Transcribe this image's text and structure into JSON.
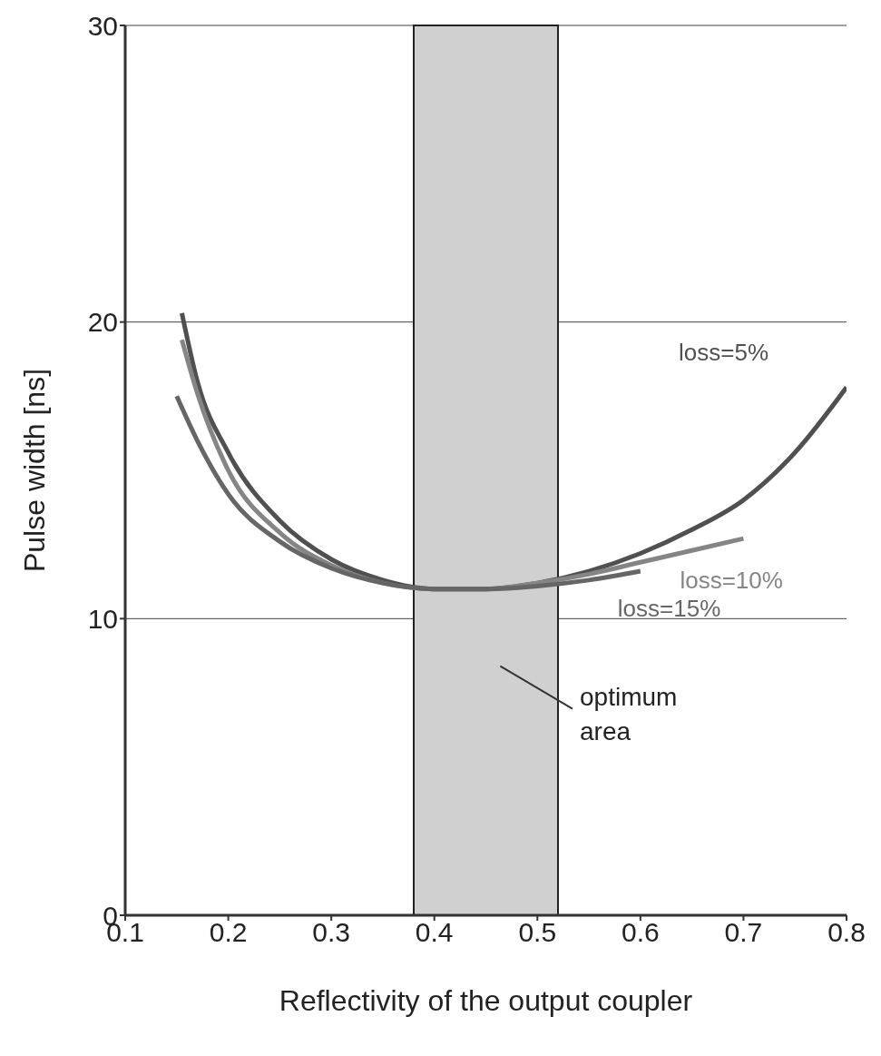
{
  "chart_data": {
    "type": "line",
    "xlabel": "Reflectivity of the output coupler",
    "ylabel": "Pulse width [ns]",
    "xlim": [
      0.1,
      0.8
    ],
    "xticks": [
      0.1,
      0.2,
      0.3,
      0.4,
      0.5,
      0.6,
      0.7,
      0.8
    ],
    "ylim": [
      0,
      30
    ],
    "yticks": [
      0,
      10,
      20,
      30
    ],
    "grid": "y",
    "legend": false,
    "marker": "none",
    "line_style": "solid",
    "series": [
      {
        "name": "loss=5%",
        "color": "#505050",
        "x": [
          0.155,
          0.17,
          0.2,
          0.25,
          0.3,
          0.35,
          0.4,
          0.45,
          0.5,
          0.55,
          0.6,
          0.65,
          0.7,
          0.75,
          0.8
        ],
        "values": [
          20.3,
          18.0,
          15.6,
          13.3,
          12.0,
          11.3,
          11.0,
          11.0,
          11.2,
          11.6,
          12.2,
          13.0,
          14.0,
          15.6,
          17.8
        ]
      },
      {
        "name": "loss=10%",
        "color": "#858585",
        "x": [
          0.155,
          0.17,
          0.2,
          0.25,
          0.3,
          0.35,
          0.4,
          0.45,
          0.5,
          0.55,
          0.6,
          0.65,
          0.7
        ],
        "values": [
          19.4,
          17.6,
          15.0,
          12.9,
          11.8,
          11.2,
          11.0,
          11.0,
          11.2,
          11.5,
          11.9,
          12.3,
          12.7
        ]
      },
      {
        "name": "loss=15%",
        "color": "#666666",
        "x": [
          0.15,
          0.17,
          0.2,
          0.25,
          0.3,
          0.35,
          0.4,
          0.45,
          0.5,
          0.55,
          0.6
        ],
        "values": [
          17.5,
          16.0,
          14.2,
          12.6,
          11.7,
          11.2,
          11.0,
          11.0,
          11.1,
          11.3,
          11.6
        ]
      }
    ],
    "bands": [
      {
        "axis": "x",
        "from": 0.38,
        "to": 0.52,
        "label": "optimum area",
        "color": "#d0d0d0"
      }
    ]
  }
}
